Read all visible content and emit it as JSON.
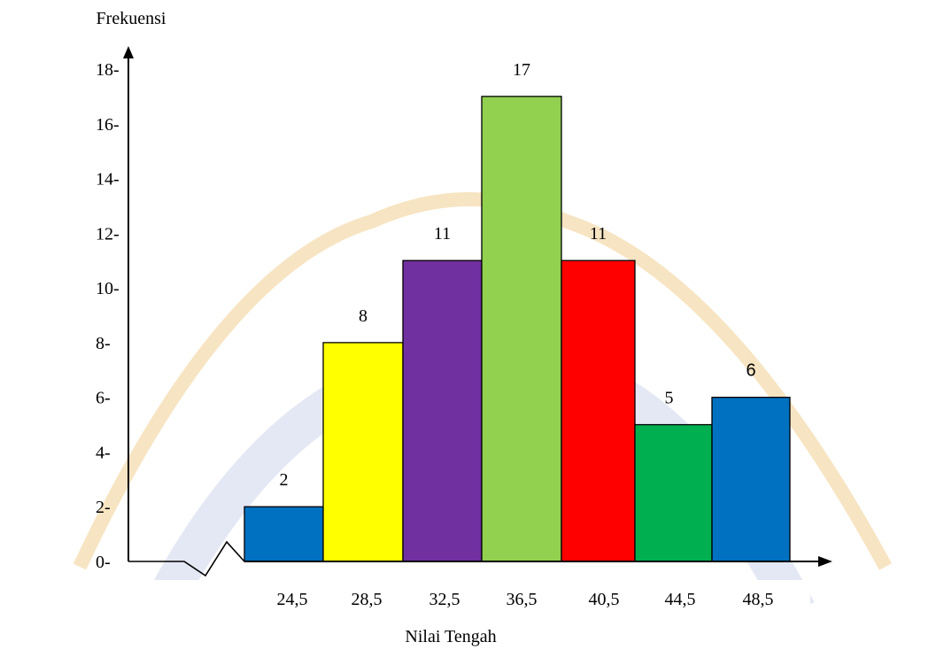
{
  "chart_data": {
    "type": "bar",
    "title": "",
    "ylabel": "Frekuensi",
    "xlabel": "Nilai Tengah",
    "ylim": [
      0,
      18
    ],
    "yticks": [
      "0-",
      "2-",
      "4-",
      "6-",
      "8-",
      "10-",
      "12-",
      "14-",
      "16-",
      "18-"
    ],
    "categories": [
      "24,5",
      "28,5",
      "32,5",
      "36,5",
      "40,5",
      "44,5",
      "48,5"
    ],
    "values": [
      2,
      8,
      11,
      17,
      11,
      5,
      6
    ],
    "value_labels": [
      "2",
      "8",
      "11",
      "17",
      "11",
      "5",
      "6"
    ],
    "colors": [
      "#0070c0",
      "#ffff00",
      "#7030a0",
      "#92d050",
      "#ff0000",
      "#00b050",
      "#0070c0"
    ],
    "axis_break": true,
    "grid": false,
    "legend": "none",
    "watermark_colors": [
      "#f3d9a8",
      "#d9def0"
    ]
  }
}
